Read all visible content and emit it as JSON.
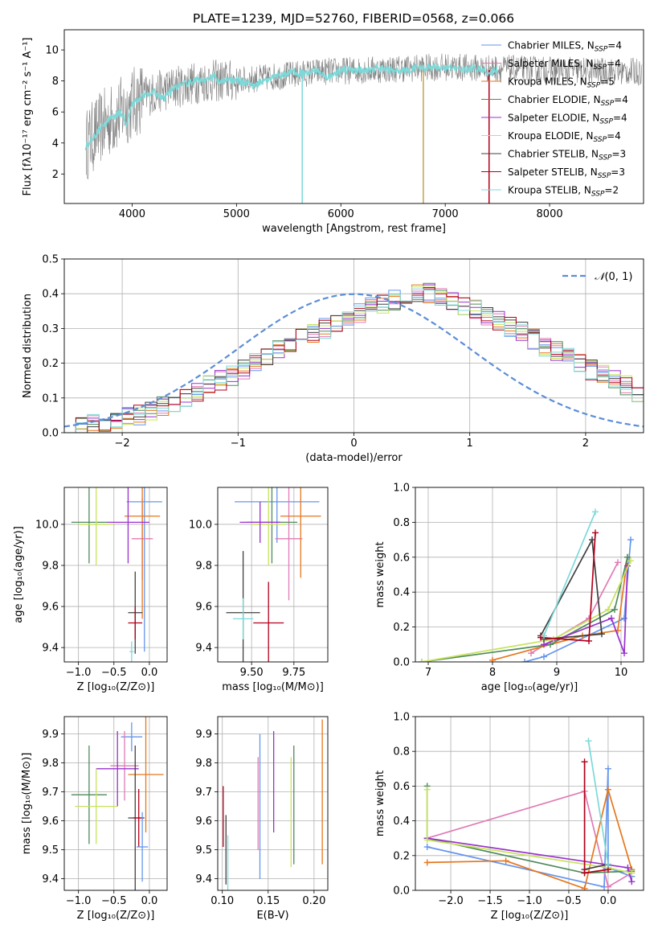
{
  "title": "PLATE=1239, MJD=52760, FIBERID=0568, z=0.066",
  "legend_entries": [
    {
      "text": "Chabrier MILES, N",
      "sub": "SSP",
      "tail": "=4",
      "color": "#6495ed"
    },
    {
      "text": "Salpeter MILES, N",
      "sub": "SSP",
      "tail": "=4",
      "color": "#e07bb5"
    },
    {
      "text": "Kroupa MILES, N",
      "sub": "SSP",
      "tail": "=5",
      "color": "#e5771e"
    },
    {
      "text": "Chabrier ELODIE, N",
      "sub": "SSP",
      "tail": "=4",
      "color": "#4f8a5a"
    },
    {
      "text": "Salpeter ELODIE, N",
      "sub": "SSP",
      "tail": "=4",
      "color": "#9932cc"
    },
    {
      "text": "Kroupa ELODIE, N",
      "sub": "SSP",
      "tail": "=4",
      "color": "#c7e35c"
    },
    {
      "text": "Chabrier STELIB, N",
      "sub": "SSP",
      "tail": "=3",
      "color": "#404040"
    },
    {
      "text": "Salpeter STELIB, N",
      "sub": "SSP",
      "tail": "=3",
      "color": "#b3001b"
    },
    {
      "text": "Kroupa STELIB, N",
      "sub": "SSP",
      "tail": "=2",
      "color": "#7dd9d9"
    }
  ],
  "chart_data": [
    {
      "id": "spectrum",
      "type": "line",
      "xlabel": "wavelength [Angstrom, rest frame]",
      "ylabel": "Flux [fλ10⁻¹⁷ erg cm⁻² s⁻¹ A⁻¹]",
      "xlim": [
        3350,
        8900
      ],
      "ylim": [
        0.1,
        11.3
      ],
      "xticks": [
        4000,
        5000,
        6000,
        7000,
        8000
      ],
      "yticks": [
        2,
        4,
        6,
        8,
        10
      ],
      "data_color": "#808080",
      "model_color": "#7dd9d9",
      "model_points": [
        [
          3550,
          3.8
        ],
        [
          3620,
          4.3
        ],
        [
          3700,
          5.0
        ],
        [
          3800,
          5.6
        ],
        [
          3900,
          6.0
        ],
        [
          3950,
          5.2
        ],
        [
          4000,
          6.5
        ],
        [
          4100,
          7.0
        ],
        [
          4200,
          7.4
        ],
        [
          4300,
          6.8
        ],
        [
          4400,
          7.6
        ],
        [
          4500,
          7.8
        ],
        [
          4600,
          8.0
        ],
        [
          4700,
          8.0
        ],
        [
          4800,
          8.3
        ],
        [
          4850,
          7.8
        ],
        [
          4900,
          8.1
        ],
        [
          5000,
          8.0
        ],
        [
          5100,
          7.9
        ],
        [
          5175,
          7.6
        ],
        [
          5250,
          8.1
        ],
        [
          5400,
          8.3
        ],
        [
          5500,
          8.5
        ],
        [
          5600,
          8.5
        ],
        [
          5700,
          8.6
        ],
        [
          5800,
          8.6
        ],
        [
          5890,
          8.2
        ],
        [
          6000,
          8.7
        ],
        [
          6200,
          8.7
        ],
        [
          6400,
          8.8
        ],
        [
          6563,
          8.6
        ],
        [
          6700,
          8.8
        ],
        [
          6900,
          8.9
        ],
        [
          7100,
          8.8
        ],
        [
          7300,
          8.8
        ],
        [
          7400,
          8.6
        ],
        [
          7500,
          8.7
        ]
      ],
      "noise_anchor": [
        [
          3550,
          3.8
        ],
        [
          3700,
          5.0
        ],
        [
          3900,
          6.0
        ],
        [
          4100,
          7.0
        ],
        [
          4400,
          7.6
        ],
        [
          4700,
          8.0
        ],
        [
          5000,
          8.0
        ],
        [
          5400,
          8.3
        ],
        [
          5800,
          8.6
        ],
        [
          6200,
          8.7
        ],
        [
          6600,
          8.8
        ],
        [
          7000,
          8.9
        ],
        [
          7500,
          8.8
        ],
        [
          8000,
          8.7
        ],
        [
          8500,
          8.6
        ],
        [
          8900,
          8.6
        ]
      ],
      "vlines": [
        {
          "x": 5630,
          "color": "#7dd9d9"
        },
        {
          "x": 6790,
          "color": "#c7a050"
        },
        {
          "x": 7420,
          "color": "#b3001b"
        }
      ]
    },
    {
      "id": "residual_hist",
      "type": "bar",
      "xlabel": "(data-model)/error",
      "ylabel": "Normed distribution",
      "xlim": [
        -2.5,
        2.5
      ],
      "ylim": [
        0,
        0.5
      ],
      "xticks": [
        -2,
        -1,
        0,
        1,
        2
      ],
      "yticks": [
        0.0,
        0.1,
        0.2,
        0.3,
        0.4,
        0.5
      ],
      "legend_label": "𝒩(0, 1)",
      "gauss_color": "#5b8ed6",
      "bin_width": 0.1,
      "bin_start": -2.5,
      "base_heights": [
        0.02,
        0.022,
        0.025,
        0.03,
        0.035,
        0.045,
        0.05,
        0.06,
        0.075,
        0.09,
        0.1,
        0.115,
        0.135,
        0.15,
        0.165,
        0.18,
        0.2,
        0.215,
        0.235,
        0.25,
        0.27,
        0.29,
        0.3,
        0.31,
        0.33,
        0.345,
        0.36,
        0.37,
        0.38,
        0.39,
        0.4,
        0.4,
        0.39,
        0.38,
        0.365,
        0.355,
        0.34,
        0.325,
        0.305,
        0.29,
        0.27,
        0.25,
        0.235,
        0.215,
        0.2,
        0.18,
        0.165,
        0.15,
        0.135,
        0.115
      ],
      "series_colors": [
        "#6495ed",
        "#e07bb5",
        "#e5771e",
        "#4f8a5a",
        "#9932cc",
        "#c7e35c",
        "#404040",
        "#b3001b",
        "#7dd9d9"
      ]
    },
    {
      "id": "age_vs_Z",
      "type": "scatter",
      "xlabel": "Z [log₁₀(Z/Z⊙)]",
      "ylabel": "age  [log₁₀(age/yr)]",
      "xlim": [
        -1.2,
        0.25
      ],
      "ylim": [
        9.33,
        10.18
      ],
      "xticks": [
        -1.0,
        -0.5,
        0.0
      ],
      "yticks": [
        9.4,
        9.6,
        9.8,
        10.0
      ],
      "points": [
        {
          "x": -0.07,
          "y": 10.11,
          "xerr": 0.25,
          "yerr": 0.73,
          "color": "#6495ed"
        },
        {
          "x": -0.1,
          "y": 9.93,
          "xerr": 0.15,
          "yerr": 0.2,
          "color": "#e07bb5"
        },
        {
          "x": -0.1,
          "y": 10.04,
          "xerr": 0.25,
          "yerr": 0.5,
          "color": "#e5771e"
        },
        {
          "x": -0.3,
          "y": 10.01,
          "xerr": 0.3,
          "yerr": 0.2,
          "color": "#9932cc"
        },
        {
          "x": -0.85,
          "y": 10.01,
          "xerr": 0.25,
          "yerr": 0.2,
          "color": "#4f8a5a"
        },
        {
          "x": -0.75,
          "y": 10.0,
          "xerr": 0.25,
          "yerr": 0.2,
          "color": "#c7e35c"
        },
        {
          "x": -0.2,
          "y": 9.57,
          "xerr": 0.1,
          "yerr": 0.2,
          "color": "#404040"
        },
        {
          "x": -0.2,
          "y": 9.52,
          "xerr": 0.1,
          "yerr": 0.08,
          "color": "#b3001b"
        },
        {
          "x": -0.25,
          "y": 9.38,
          "xerr": 0.03,
          "yerr": 0.05,
          "color": "#7dd9d9"
        }
      ]
    },
    {
      "id": "age_vs_mass",
      "type": "scatter",
      "xlabel": "mass [log₁₀(M/M⊙)]",
      "ylabel": "",
      "xlim": [
        9.3,
        9.95
      ],
      "ylim": [
        9.33,
        10.18
      ],
      "xticks": [
        9.5,
        9.75
      ],
      "yticks": [
        9.4,
        9.6,
        9.8,
        10.0
      ],
      "points": [
        {
          "x": 9.65,
          "y": 10.11,
          "xerr": 0.25,
          "yerr": 0.2,
          "color": "#6495ed"
        },
        {
          "x": 9.72,
          "y": 9.93,
          "xerr": 0.08,
          "yerr": 0.3,
          "color": "#e07bb5"
        },
        {
          "x": 9.79,
          "y": 10.04,
          "xerr": 0.12,
          "yerr": 0.3,
          "color": "#e5771e"
        },
        {
          "x": 9.62,
          "y": 10.01,
          "xerr": 0.15,
          "yerr": 0.2,
          "color": "#4f8a5a"
        },
        {
          "x": 9.6,
          "y": 10.0,
          "xerr": 0.1,
          "yerr": 0.2,
          "color": "#c7e35c"
        },
        {
          "x": 9.55,
          "y": 10.01,
          "xerr": 0.12,
          "yerr": 0.1,
          "color": "#9932cc"
        },
        {
          "x": 9.45,
          "y": 9.57,
          "xerr": 0.1,
          "yerr": 0.3,
          "color": "#404040"
        },
        {
          "x": 9.6,
          "y": 9.52,
          "xerr": 0.09,
          "yerr": 0.2,
          "color": "#b3001b"
        },
        {
          "x": 9.45,
          "y": 9.54,
          "xerr": 0.06,
          "yerr": 0.1,
          "color": "#7dd9d9"
        }
      ]
    },
    {
      "id": "massweight_vs_age",
      "type": "line",
      "xlabel": "age  [log₁₀(age/yr)]",
      "ylabel": "mass weight",
      "xlim": [
        6.8,
        10.35
      ],
      "ylim": [
        0,
        1.0
      ],
      "xticks": [
        7,
        8,
        9,
        10
      ],
      "yticks": [
        0.0,
        0.2,
        0.4,
        0.6,
        0.8,
        1.0
      ],
      "series": [
        {
          "color": "#6495ed",
          "points": [
            [
              8.5,
              0.0
            ],
            [
              8.8,
              0.03
            ],
            [
              10.05,
              0.25
            ],
            [
              10.15,
              0.7
            ]
          ]
        },
        {
          "color": "#e07bb5",
          "points": [
            [
              8.6,
              0.05
            ],
            [
              9.5,
              0.25
            ],
            [
              9.95,
              0.57
            ]
          ]
        },
        {
          "color": "#e5771e",
          "points": [
            [
              8.0,
              0.01
            ],
            [
              9.4,
              0.15
            ],
            [
              9.95,
              0.18
            ],
            [
              10.1,
              0.6
            ]
          ]
        },
        {
          "color": "#4f8a5a",
          "points": [
            [
              6.9,
              0.0
            ],
            [
              8.9,
              0.1
            ],
            [
              9.9,
              0.3
            ],
            [
              10.1,
              0.6
            ]
          ]
        },
        {
          "color": "#9932cc",
          "points": [
            [
              8.8,
              0.1
            ],
            [
              9.85,
              0.25
            ],
            [
              10.05,
              0.05
            ],
            [
              10.1,
              0.55
            ]
          ]
        },
        {
          "color": "#c7e35c",
          "points": [
            [
              6.9,
              0.0
            ],
            [
              8.95,
              0.13
            ],
            [
              9.8,
              0.3
            ],
            [
              10.15,
              0.58
            ]
          ]
        },
        {
          "color": "#404040",
          "points": [
            [
              8.75,
              0.15
            ],
            [
              9.55,
              0.7
            ],
            [
              9.7,
              0.16
            ],
            [
              8.8,
              0.13
            ]
          ]
        },
        {
          "color": "#b3001b",
          "points": [
            [
              8.75,
              0.14
            ],
            [
              9.5,
              0.12
            ],
            [
              9.6,
              0.74
            ]
          ]
        },
        {
          "color": "#7dd9d9",
          "points": [
            [
              8.8,
              0.15
            ],
            [
              9.6,
              0.86
            ]
          ]
        }
      ]
    },
    {
      "id": "mass_vs_Z",
      "type": "scatter",
      "xlabel": "Z [log₁₀(Z/Z⊙)]",
      "ylabel": "mass [log₁₀(M/M⊙)]",
      "xlim": [
        -1.2,
        0.25
      ],
      "ylim": [
        9.36,
        9.96
      ],
      "xticks": [
        -1.0,
        -0.5,
        0.0
      ],
      "yticks": [
        9.4,
        9.5,
        9.6,
        9.7,
        9.8,
        9.9
      ],
      "points": [
        {
          "x": -0.25,
          "y": 9.89,
          "xerr": 0.15,
          "yerr": 0.05,
          "color": "#6495ed"
        },
        {
          "x": -0.35,
          "y": 9.79,
          "xerr": 0.2,
          "yerr": 0.12,
          "color": "#e07bb5"
        },
        {
          "x": -0.05,
          "y": 9.76,
          "xerr": 0.25,
          "yerr": 0.2,
          "color": "#e5771e"
        },
        {
          "x": -0.45,
          "y": 9.78,
          "xerr": 0.3,
          "yerr": 0.13,
          "color": "#9932cc"
        },
        {
          "x": -0.85,
          "y": 9.69,
          "xerr": 0.25,
          "yerr": 0.17,
          "color": "#4f8a5a"
        },
        {
          "x": -0.75,
          "y": 9.65,
          "xerr": 0.3,
          "yerr": 0.13,
          "color": "#c7e35c"
        },
        {
          "x": -0.2,
          "y": 9.61,
          "xerr": 0.1,
          "yerr": 0.25,
          "color": "#404040"
        },
        {
          "x": -0.15,
          "y": 9.61,
          "xerr": 0.08,
          "yerr": 0.1,
          "color": "#b3001b"
        },
        {
          "x": -0.1,
          "y": 9.51,
          "xerr": 0.08,
          "yerr": 0.12,
          "color": "#6495ed"
        }
      ]
    },
    {
      "id": "mass_vs_EBV",
      "type": "scatter",
      "xlabel": "E(B-V)",
      "ylabel": "",
      "xlim": [
        0.095,
        0.215
      ],
      "ylim": [
        9.36,
        9.96
      ],
      "xticks": [
        0.1,
        0.15,
        0.2
      ],
      "yticks": [
        9.4,
        9.5,
        9.6,
        9.7,
        9.8,
        9.9
      ],
      "vbars": [
        {
          "x": 0.101,
          "y0": 9.51,
          "y1": 9.72,
          "color": "#b3001b"
        },
        {
          "x": 0.104,
          "y0": 9.38,
          "y1": 9.62,
          "color": "#404040"
        },
        {
          "x": 0.106,
          "y0": 9.36,
          "y1": 9.55,
          "color": "#7dd9d9"
        },
        {
          "x": 0.139,
          "y0": 9.5,
          "y1": 9.82,
          "color": "#e07bb5"
        },
        {
          "x": 0.141,
          "y0": 9.4,
          "y1": 9.9,
          "color": "#6495ed"
        },
        {
          "x": 0.156,
          "y0": 9.56,
          "y1": 9.91,
          "color": "#9932cc"
        },
        {
          "x": 0.175,
          "y0": 9.44,
          "y1": 9.82,
          "color": "#c7e35c"
        },
        {
          "x": 0.178,
          "y0": 9.45,
          "y1": 9.86,
          "color": "#4f8a5a"
        },
        {
          "x": 0.209,
          "y0": 9.45,
          "y1": 9.95,
          "color": "#e5771e"
        }
      ]
    },
    {
      "id": "massweight_vs_Z",
      "type": "line",
      "xlabel": "Z [log₁₀(Z/Z⊙)]",
      "ylabel": "mass weight",
      "xlim": [
        -2.45,
        0.45
      ],
      "ylim": [
        0,
        1.0
      ],
      "xticks": [
        -2.0,
        -1.5,
        -1.0,
        -0.5,
        0.0
      ],
      "yticks": [
        0.0,
        0.2,
        0.4,
        0.6,
        0.8,
        1.0
      ],
      "series": [
        {
          "color": "#6495ed",
          "points": [
            [
              -2.3,
              0.25
            ],
            [
              -0.05,
              0.02
            ],
            [
              0.0,
              0.7
            ],
            [
              0.0,
              0.13
            ],
            [
              0.3,
              0.08
            ]
          ]
        },
        {
          "color": "#e07bb5",
          "points": [
            [
              -2.3,
              0.3
            ],
            [
              -0.3,
              0.57
            ],
            [
              0.0,
              0.02
            ],
            [
              0.3,
              0.1
            ]
          ]
        },
        {
          "color": "#e5771e",
          "points": [
            [
              -2.3,
              0.16
            ],
            [
              -1.3,
              0.17
            ],
            [
              -0.3,
              0.01
            ],
            [
              0.0,
              0.58
            ],
            [
              0.3,
              0.12
            ]
          ]
        },
        {
          "color": "#4f8a5a",
          "points": [
            [
              -2.3,
              0.6
            ],
            [
              -2.3,
              0.3
            ],
            [
              -0.3,
              0.1
            ],
            [
              0.3,
              0.11
            ]
          ]
        },
        {
          "color": "#9932cc",
          "points": [
            [
              -2.3,
              0.3
            ],
            [
              0.25,
              0.13
            ],
            [
              0.3,
              0.05
            ]
          ]
        },
        {
          "color": "#c7e35c",
          "points": [
            [
              -2.3,
              0.58
            ],
            [
              -2.3,
              0.29
            ],
            [
              0.0,
              0.13
            ],
            [
              0.3,
              0.1
            ]
          ]
        },
        {
          "color": "#404040",
          "points": [
            [
              -0.3,
              0.12
            ],
            [
              0.0,
              0.15
            ]
          ]
        },
        {
          "color": "#b3001b",
          "points": [
            [
              -0.3,
              0.74
            ],
            [
              -0.3,
              0.1
            ],
            [
              0.0,
              0.12
            ]
          ]
        },
        {
          "color": "#7dd9d9",
          "points": [
            [
              -0.25,
              0.86
            ],
            [
              0.0,
              0.15
            ]
          ]
        }
      ]
    }
  ]
}
